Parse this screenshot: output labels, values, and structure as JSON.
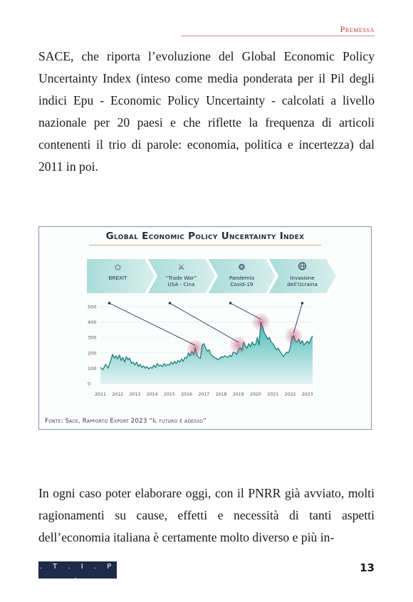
{
  "header": {
    "running_title": "Premessa"
  },
  "body": {
    "paragraph_1": "SACE, che riporta l’evoluzione del Global Economic Policy Uncertainty Index (inteso come media ponderata per il Pil degli indici Epu - Economic Policy Uncertainty - calcolati a livello nazionale per 20 paesi e che riflette la frequenza di articoli contenenti il trio di parole: economia, politica e incertezza) dal 2011 in poi.",
    "paragraph_2": "In ogni caso poter elaborare oggi, con il PNRR già avviato, molti ragionamenti su cause, effetti e necessità di tanti aspetti dell’economia italiana è certamente molto diverso e più in-"
  },
  "figure": {
    "source": "Fonte: Sace, Rapporto Export 2023 “Il futuro è adesso”"
  },
  "chart_data": {
    "type": "area",
    "title": "Global Economic Policy Uncertainty Index",
    "xlabel": "",
    "ylabel": "",
    "ylim": [
      0,
      500
    ],
    "yticks": [
      0,
      100,
      200,
      300,
      400,
      500
    ],
    "xticks": [
      "2011",
      "2012",
      "2013",
      "2014",
      "2015",
      "2016",
      "2017",
      "2018",
      "2019",
      "2020",
      "2021",
      "2022",
      "2023"
    ],
    "grid": "dotted horizontal",
    "events": [
      {
        "label": "BREXIT",
        "icon": "star-icon",
        "year": 2016.5,
        "value": 230
      },
      {
        "label": "“Trade War” USA - Cina",
        "icon": "trade-war-icon",
        "year": 2019.0,
        "value": 250
      },
      {
        "label": "Pandemia Covid-19",
        "icon": "virus-icon",
        "year": 2020.3,
        "value": 400
      },
      {
        "label": "Invasione dell’Ucraina",
        "icon": "globe-icon",
        "year": 2022.2,
        "value": 310
      }
    ],
    "series": [
      {
        "x": [
          2011.0,
          2011.15,
          2011.3,
          2011.45,
          2011.6,
          2011.7,
          2011.8,
          2011.9,
          2012.0,
          2012.1,
          2012.2,
          2012.3,
          2012.4,
          2012.5,
          2012.6,
          2012.7,
          2012.8,
          2012.9,
          2013.0,
          2013.1,
          2013.2,
          2013.3,
          2013.4,
          2013.5,
          2013.6,
          2013.7,
          2013.8,
          2013.9,
          2014.0,
          2014.1,
          2014.2,
          2014.3,
          2014.4,
          2014.5,
          2014.6,
          2014.7,
          2014.8,
          2014.9,
          2015.0,
          2015.1,
          2015.2,
          2015.3,
          2015.4,
          2015.5,
          2015.6,
          2015.7,
          2015.8,
          2015.9,
          2016.0,
          2016.1,
          2016.2,
          2016.3,
          2016.4,
          2016.5,
          2016.6,
          2016.7,
          2016.8,
          2016.9,
          2017.0,
          2017.1,
          2017.2,
          2017.3,
          2017.4,
          2017.5,
          2017.6,
          2017.7,
          2017.8,
          2017.9,
          2018.0,
          2018.1,
          2018.2,
          2018.3,
          2018.4,
          2018.5,
          2018.6,
          2018.7,
          2018.8,
          2018.9,
          2019.0,
          2019.1,
          2019.2,
          2019.3,
          2019.4,
          2019.5,
          2019.6,
          2019.7,
          2019.8,
          2019.9,
          2020.0,
          2020.1,
          2020.2,
          2020.3,
          2020.4,
          2020.5,
          2020.6,
          2020.7,
          2020.8,
          2020.9,
          2021.0,
          2021.1,
          2021.2,
          2021.3,
          2021.4,
          2021.5,
          2021.6,
          2021.7,
          2021.8,
          2021.9,
          2022.0,
          2022.1,
          2022.2,
          2022.3,
          2022.4,
          2022.5,
          2022.6,
          2022.7,
          2022.8,
          2022.9,
          2023.0,
          2023.1,
          2023.2,
          2023.3
        ],
        "values": [
          105,
          90,
          125,
          100,
          150,
          190,
          165,
          180,
          160,
          185,
          150,
          170,
          140,
          175,
          155,
          165,
          130,
          140,
          120,
          140,
          110,
          125,
          105,
          115,
          100,
          110,
          95,
          105,
          100,
          120,
          105,
          130,
          115,
          120,
          110,
          130,
          115,
          125,
          120,
          140,
          125,
          145,
          130,
          150,
          140,
          160,
          145,
          170,
          165,
          200,
          180,
          210,
          190,
          230,
          185,
          170,
          165,
          250,
          260,
          230,
          210,
          220,
          190,
          180,
          170,
          165,
          155,
          160,
          175,
          170,
          180,
          175,
          170,
          185,
          175,
          205,
          200,
          190,
          220,
          235,
          215,
          270,
          245,
          230,
          260,
          240,
          270,
          250,
          255,
          300,
          250,
          400,
          370,
          330,
          310,
          290,
          300,
          270,
          260,
          240,
          220,
          230,
          210,
          195,
          175,
          190,
          205,
          200,
          230,
          300,
          310,
          280,
          270,
          290,
          260,
          280,
          250,
          265,
          275,
          260,
          290,
          310
        ]
      }
    ]
  },
  "footer": {
    "logo_mark": ". T . I . P .",
    "logo_sub": "Tamburi Investment Partners S.p.a.",
    "page_number": "13"
  }
}
